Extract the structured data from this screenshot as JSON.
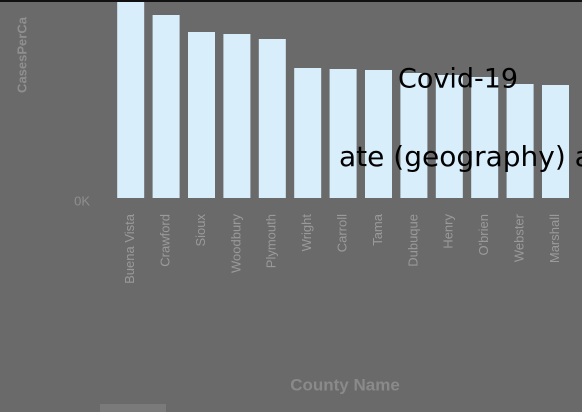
{
  "chart_data": {
    "type": "bar",
    "y_label": "CasesPerCa",
    "x_label": "County Name",
    "categories": [
      "Buena Vista",
      "Crawford",
      "Sioux",
      "Woodbury",
      "Plymouth",
      "Wright",
      "Carroll",
      "Tama",
      "Dubuque",
      "Henry",
      "O'brien",
      "Webster",
      "Marshall"
    ],
    "values": [
      196,
      183,
      166,
      164,
      159,
      130,
      129,
      128,
      125,
      123,
      121,
      114,
      113
    ],
    "color": "#d8eefb",
    "ylim": [
      0,
      200
    ],
    "yticks": [
      {
        "value": 0,
        "label": "0K"
      }
    ],
    "annotations": [
      "Covid-19",
      "ate (geography) and by dat"
    ]
  }
}
